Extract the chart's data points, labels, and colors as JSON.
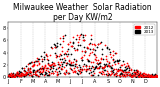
{
  "title": "Milwaukee Weather  Solar Radiation\nper Day KW/m2",
  "title_fontsize": 5.5,
  "background_color": "#ffffff",
  "xlim": [
    0,
    365
  ],
  "ylim": [
    0,
    9
  ],
  "yticks": [
    0,
    2,
    4,
    6,
    8
  ],
  "ytick_labels": [
    "0",
    "2",
    "4",
    "6",
    "8"
  ],
  "month_starts": [
    1,
    32,
    60,
    91,
    121,
    152,
    182,
    213,
    244,
    274,
    305,
    335
  ],
  "month_labels": [
    "J",
    "F",
    "M",
    "A",
    "M",
    "J",
    "J",
    "A",
    "S",
    "O",
    "N",
    "D"
  ],
  "legend_label1": "2012",
  "legend_label2": "2013",
  "color1": "#ff0000",
  "color2": "#000000",
  "marker_size": 1.5,
  "seed1": 42,
  "seed2": 123,
  "n_days": 365
}
